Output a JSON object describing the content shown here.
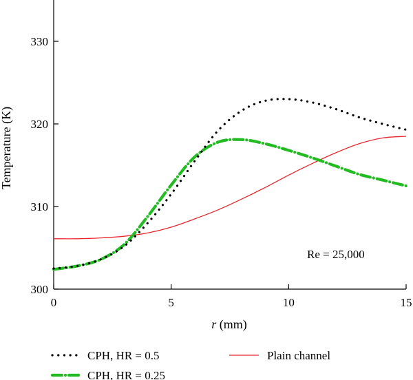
{
  "chart_data": {
    "type": "line",
    "xlabel_italic": "r",
    "xlabel_rest": " (mm)",
    "ylabel": "Temperature (K)",
    "xlim": [
      0,
      15
    ],
    "ylim": [
      300,
      335
    ],
    "xticks": [
      0,
      5,
      10,
      15
    ],
    "yticks": [
      300,
      310,
      320,
      330
    ],
    "grid": false,
    "legend_position": "bottom",
    "annotation": "Re = 25,000",
    "series": [
      {
        "name": "CPH, HR = 0.5",
        "color": "#000000",
        "style": "dotted",
        "x": [
          0,
          1,
          2,
          3,
          4,
          5,
          6,
          7,
          8,
          9,
          10,
          11,
          12,
          13,
          14,
          15
        ],
        "y": [
          302.5,
          302.8,
          303.6,
          305.2,
          308.0,
          311.5,
          315.5,
          319.2,
          321.6,
          322.8,
          323.0,
          322.6,
          321.8,
          320.8,
          320.0,
          319.3
        ]
      },
      {
        "name": "CPH, HR = 0.25",
        "color": "#22bb22",
        "style": "dashdot",
        "x": [
          0,
          1,
          2,
          3,
          4,
          5,
          6,
          7,
          8,
          9,
          10,
          11,
          12,
          13,
          14,
          15
        ],
        "y": [
          302.4,
          302.8,
          303.6,
          305.4,
          308.8,
          312.6,
          316.0,
          317.8,
          318.1,
          317.6,
          316.8,
          315.9,
          314.9,
          313.9,
          313.2,
          312.5
        ]
      },
      {
        "name": "Plain channel",
        "color": "#e8262a",
        "style": "solid",
        "x": [
          0,
          1,
          2,
          3,
          4,
          5,
          6,
          7,
          8,
          9,
          10,
          11,
          12,
          13,
          14,
          15
        ],
        "y": [
          306.1,
          306.1,
          306.2,
          306.4,
          306.8,
          307.5,
          308.5,
          309.6,
          310.9,
          312.3,
          313.8,
          315.2,
          316.5,
          317.6,
          318.3,
          318.5
        ]
      }
    ]
  }
}
